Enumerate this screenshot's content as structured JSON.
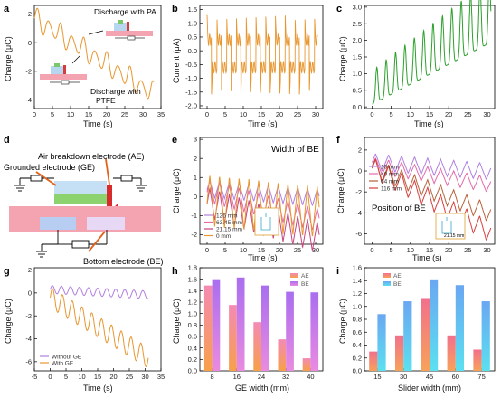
{
  "panels": [
    {
      "id": "a",
      "letter": "a",
      "ylabel": "Charge (μC)",
      "xlabel": "Time (s)",
      "xlim": [
        0,
        35
      ],
      "ylim": [
        -4.6,
        2.6
      ],
      "xticks": [
        0,
        5,
        10,
        15,
        20,
        25,
        30,
        35
      ],
      "yticks": [
        -4,
        -2,
        0,
        2
      ],
      "annotations": [
        "Discharge with PA",
        "Discharge with PTFE"
      ]
    },
    {
      "id": "b",
      "letter": "b",
      "ylabel": "Current (μA)",
      "xlabel": "Time (s)",
      "xlim": [
        -2,
        32
      ],
      "ylim": [
        -2.1,
        1.65
      ],
      "xticks": [
        0,
        5,
        10,
        15,
        20,
        25,
        30
      ],
      "yticks": [
        -2.0,
        -1.5,
        -1.0,
        -0.5,
        0.0,
        0.5,
        1.0,
        1.5
      ]
    },
    {
      "id": "c",
      "letter": "c",
      "ylabel": "Charge (μC)",
      "xlabel": "Time (s)",
      "xlim": [
        -2,
        32
      ],
      "ylim": [
        -0.05,
        3.05
      ],
      "xticks": [
        0,
        5,
        10,
        15,
        20,
        25,
        30
      ],
      "yticks": [
        0.0,
        0.5,
        1.0,
        1.5,
        2.0,
        2.5,
        3.0
      ]
    },
    {
      "id": "d",
      "letter": "d",
      "labels": [
        "Air breakdown electrode (AE)",
        "Grounded electrode (GE)",
        "Bottom electrode (BE)"
      ]
    },
    {
      "id": "e",
      "letter": "e",
      "ylabel": "Charge (μC)",
      "xlabel": "Time (s)",
      "xlim": [
        -2,
        32
      ],
      "ylim": [
        -2.5,
        3.1
      ],
      "xticks": [
        0,
        5,
        10,
        15,
        20,
        25,
        30
      ],
      "yticks": [
        -2,
        -1,
        0,
        1,
        2,
        3
      ],
      "title": "Width of BE",
      "legend": [
        "126 mm",
        "63.45 mm",
        "21.15 mm",
        "0 mm"
      ]
    },
    {
      "id": "f",
      "letter": "f",
      "ylabel": "Charge (μC)",
      "xlabel": "Time (s)",
      "xlim": [
        -2,
        32
      ],
      "ylim": [
        -7,
        3.2
      ],
      "xticks": [
        0,
        5,
        10,
        15,
        20,
        25,
        30
      ],
      "yticks": [
        -6,
        -4,
        -2,
        0,
        2
      ],
      "title": "Position of BE",
      "legend": [
        "10 mm",
        "40 mm",
        "64 mm",
        "116 mm"
      ],
      "inset_label": "21.15 mm"
    },
    {
      "id": "g",
      "letter": "g",
      "ylabel": "Charge (μC)",
      "xlabel": "Time (s)",
      "xlim": [
        -5,
        35
      ],
      "ylim": [
        -6.8,
        2.2
      ],
      "xticks": [
        -5,
        0,
        5,
        10,
        15,
        20,
        25,
        30,
        35
      ],
      "yticks": [
        -6,
        -4,
        -2,
        0,
        2
      ],
      "legend": [
        "Without GE",
        "With GE"
      ]
    },
    {
      "id": "h",
      "letter": "h",
      "ylabel": "Charge (μC)",
      "xlabel": "GE width (mm)",
      "ylim": [
        0,
        1.8
      ],
      "yticks": [
        0.0,
        0.2,
        0.4,
        0.6,
        0.8,
        1.0,
        1.2,
        1.4,
        1.6,
        1.8
      ],
      "legend": [
        "AE",
        "BE"
      ]
    },
    {
      "id": "i",
      "letter": "i",
      "ylabel": "Charge (μC)",
      "xlabel": "Slider width (mm)",
      "ylim": [
        0,
        1.6
      ],
      "yticks": [
        0.0,
        0.2,
        0.4,
        0.6,
        0.8,
        1.0,
        1.2,
        1.4,
        1.6
      ],
      "legend": [
        "AE",
        "BE"
      ]
    }
  ],
  "colors": {
    "orange": "#e8962f",
    "green": "#2ca02c",
    "purple": "#b07fe0",
    "pink": "#e46aa8",
    "magenta": "#c8447f",
    "brown": "#b5623a",
    "red": "#d63d3d"
  },
  "chart_data": [
    {
      "panel": "h",
      "type": "bar",
      "categories": [
        "8",
        "16",
        "24",
        "32",
        "40"
      ],
      "series": [
        {
          "name": "AE",
          "values": [
            1.49,
            1.15,
            0.85,
            0.55,
            0.22
          ]
        },
        {
          "name": "BE",
          "values": [
            1.6,
            1.63,
            1.49,
            1.38,
            1.37
          ]
        }
      ],
      "xlabel": "GE width (mm)",
      "ylabel": "Charge (μC)",
      "ylim": [
        0,
        1.8
      ]
    },
    {
      "panel": "i",
      "type": "bar",
      "categories": [
        "15",
        "30",
        "45",
        "60",
        "75"
      ],
      "series": [
        {
          "name": "AE",
          "values": [
            0.3,
            0.55,
            1.13,
            0.55,
            0.33
          ]
        },
        {
          "name": "BE",
          "values": [
            0.88,
            1.08,
            1.42,
            1.33,
            1.08
          ]
        }
      ],
      "xlabel": "Slider width (mm)",
      "ylabel": "Charge (μC)",
      "ylim": [
        0,
        1.6
      ]
    }
  ]
}
